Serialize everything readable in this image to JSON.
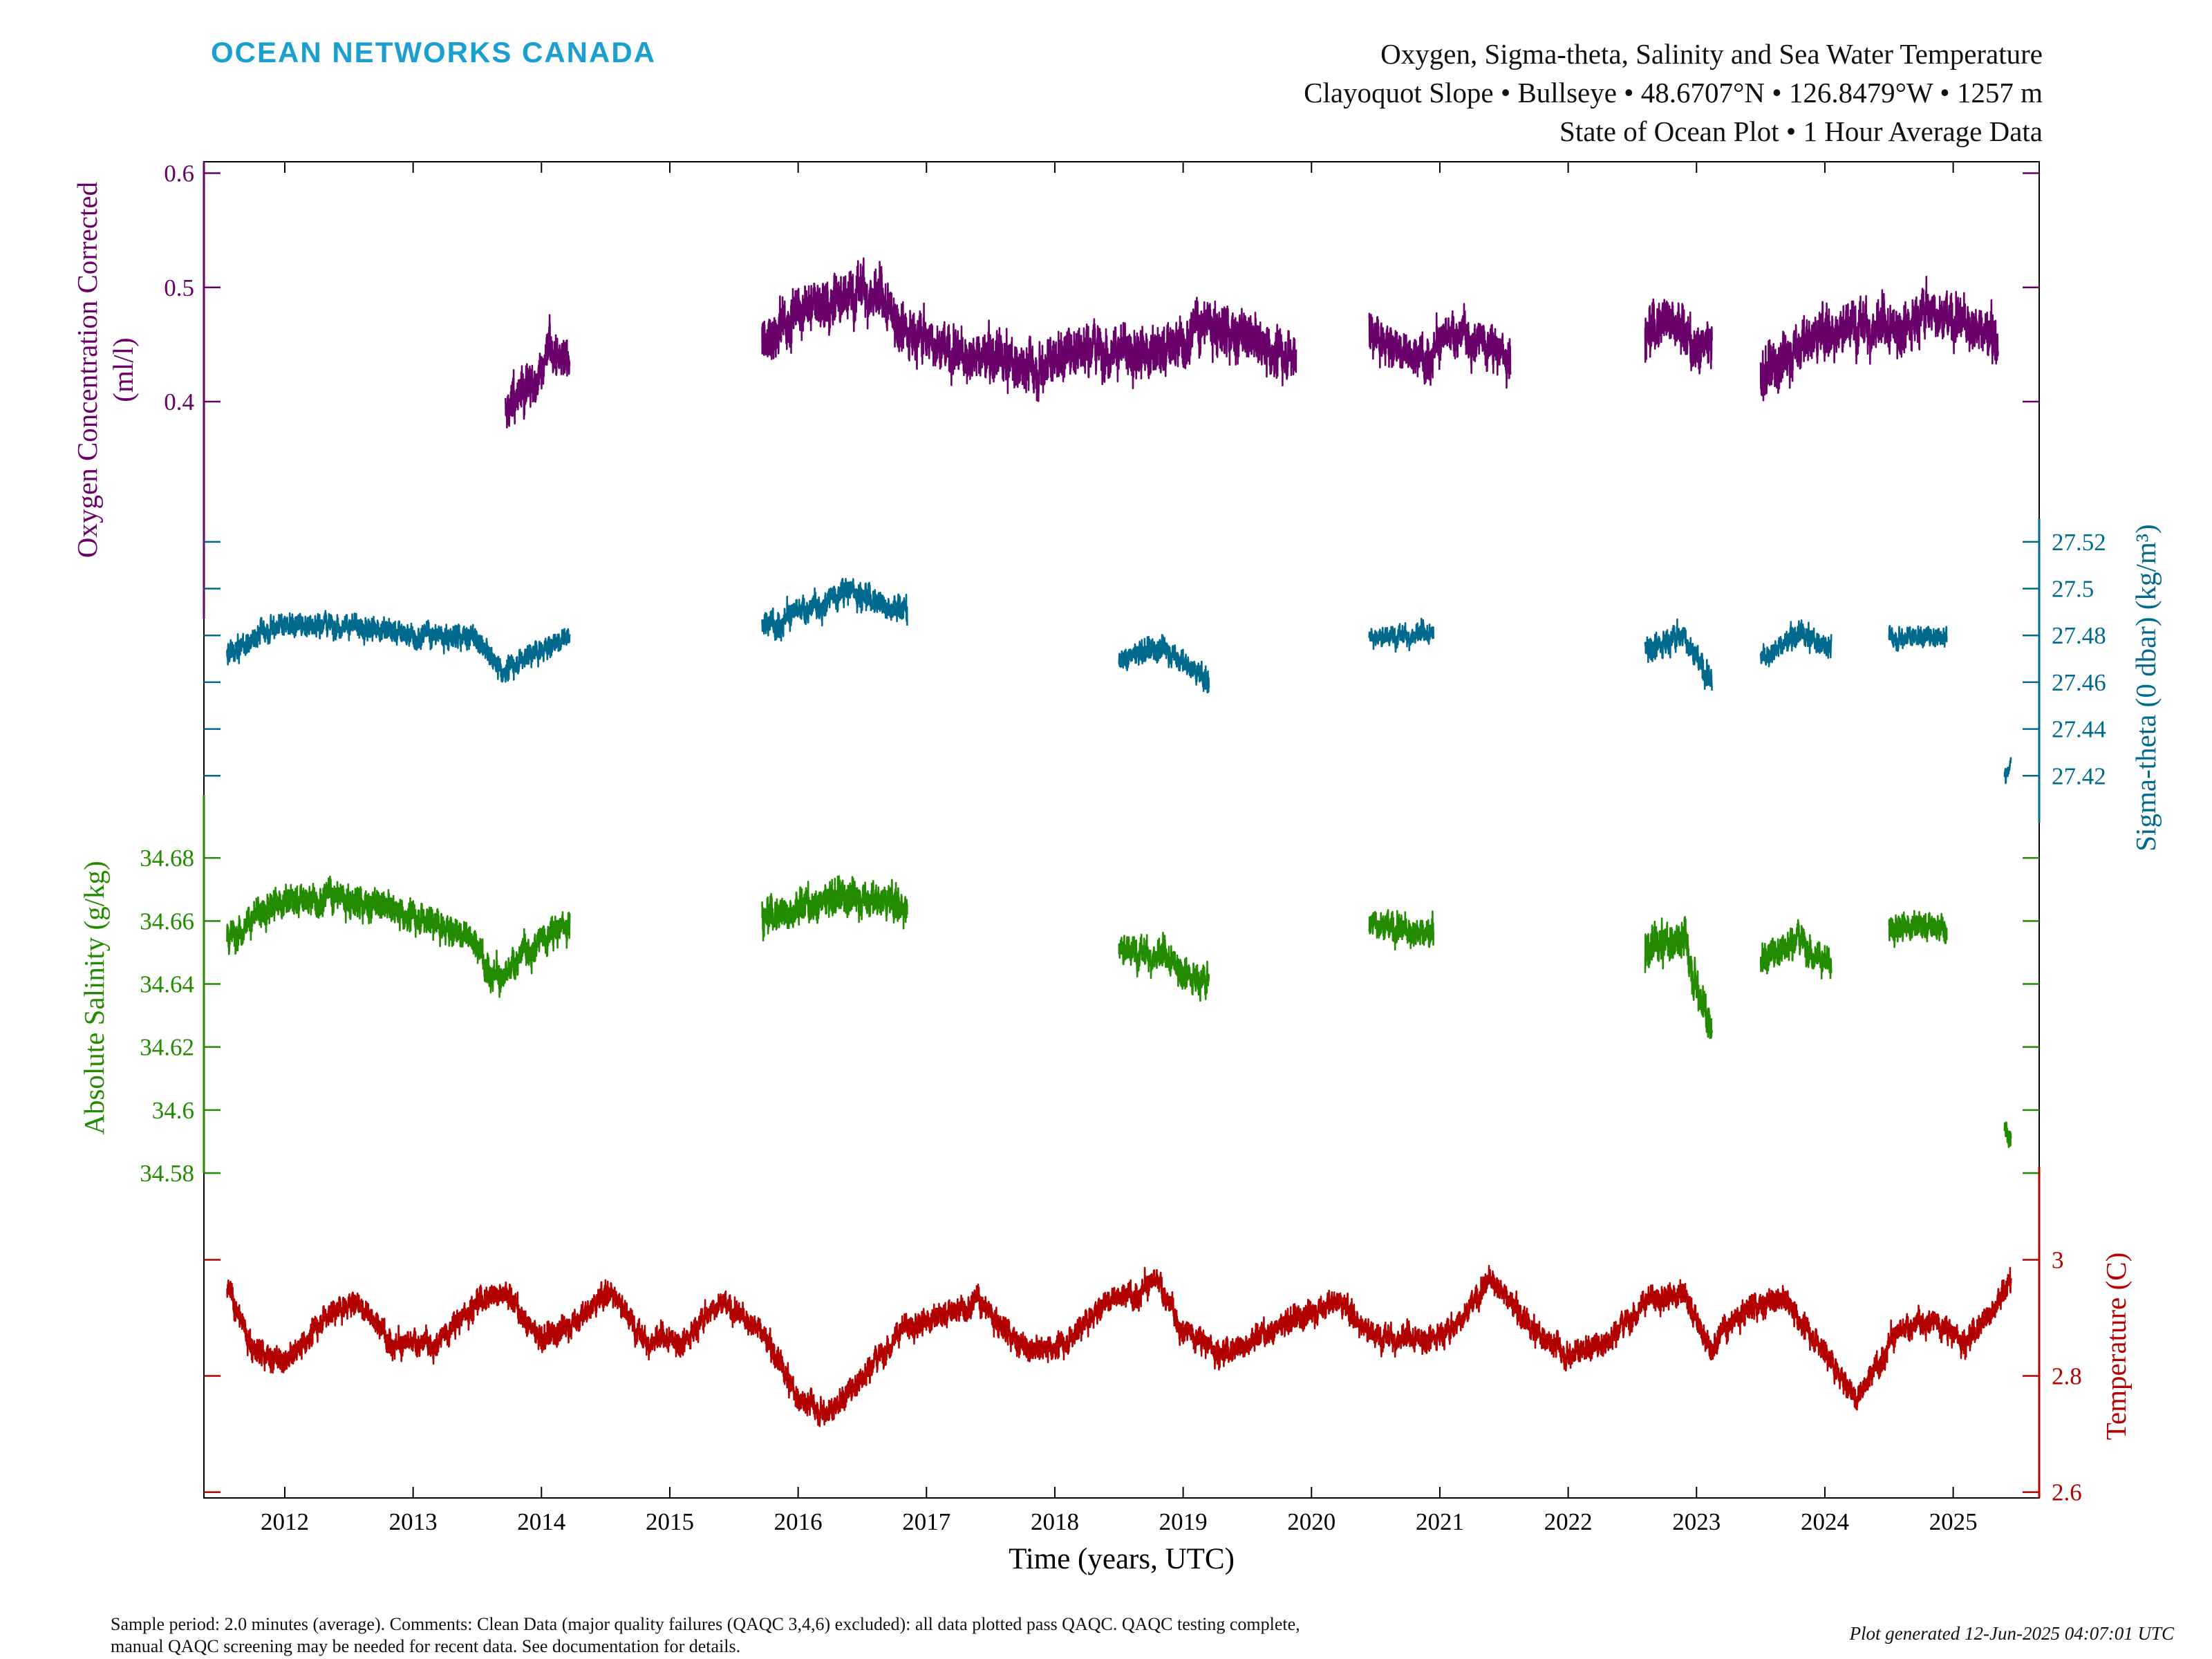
{
  "header": {
    "logo_text": "OCEAN NETWORKS CANADA",
    "title_line1": "Oxygen, Sigma-theta, Salinity and Sea Water Temperature",
    "title_line2": "Clayoquot Slope • Bullseye • 48.6707°N • 126.8479°W • 1257 m",
    "title_line3": "State of Ocean Plot • 1 Hour Average Data"
  },
  "footer": {
    "comment_line1": "Sample period: 2.0 minutes (average). Comments: Clean Data (major quality failures (QAQC 3,4,6) excluded): all data plotted pass QAQC. QAQC testing complete,",
    "comment_line2": "manual QAQC screening may be needed for recent data. See documentation for details.",
    "generated": "Plot generated 12-Jun-2025 04:07:01 UTC"
  },
  "colors": {
    "oxygen": "#6a006a",
    "sigma": "#006a8e",
    "salinity": "#228b00",
    "temperature": "#b30000",
    "logo": "#1a9fd0"
  },
  "chart_data": {
    "type": "line",
    "xlabel": "Time (years, UTC)",
    "x_ticks": [
      "2012",
      "2013",
      "2014",
      "2015",
      "2016",
      "2017",
      "2018",
      "2019",
      "2020",
      "2021",
      "2022",
      "2023",
      "2024",
      "2025"
    ],
    "xlim": [
      2011.37,
      2025.67
    ],
    "grid": false,
    "series": [
      {
        "key": "oxygen",
        "ylabel_line1": "Oxygen Concentration Corrected",
        "ylabel_line2": "(ml/l)",
        "axis_side": "left",
        "ylim": [
          0.21,
          0.61
        ],
        "y_ticks": [
          "0.4",
          "0.5",
          "0.6"
        ],
        "segments": [
          {
            "start": 2013.72,
            "end": 2014.22,
            "points": [
              [
                2013.72,
                0.39
              ],
              [
                2013.85,
                0.41
              ],
              [
                2013.98,
                0.42
              ],
              [
                2014.05,
                0.45
              ],
              [
                2014.1,
                0.44
              ],
              [
                2014.22,
                0.43
              ]
            ],
            "noise": 0.03
          },
          {
            "start": 2015.72,
            "end": 2019.88,
            "points": [
              [
                2015.72,
                0.45
              ],
              [
                2016.0,
                0.48
              ],
              [
                2016.3,
                0.49
              ],
              [
                2016.5,
                0.5
              ],
              [
                2016.9,
                0.46
              ],
              [
                2017.3,
                0.44
              ],
              [
                2017.8,
                0.43
              ],
              [
                2018.2,
                0.45
              ],
              [
                2018.8,
                0.44
              ],
              [
                2019.2,
                0.47
              ],
              [
                2019.6,
                0.45
              ],
              [
                2019.88,
                0.44
              ]
            ],
            "noise": 0.035
          },
          {
            "start": 2020.45,
            "end": 2021.55,
            "points": [
              [
                2020.45,
                0.46
              ],
              [
                2020.8,
                0.44
              ],
              [
                2021.2,
                0.46
              ],
              [
                2021.55,
                0.44
              ]
            ],
            "noise": 0.03
          },
          {
            "start": 2022.6,
            "end": 2023.12,
            "points": [
              [
                2022.6,
                0.46
              ],
              [
                2022.8,
                0.48
              ],
              [
                2022.95,
                0.45
              ],
              [
                2023.12,
                0.45
              ]
            ],
            "noise": 0.035
          },
          {
            "start": 2023.5,
            "end": 2025.35,
            "points": [
              [
                2023.5,
                0.42
              ],
              [
                2023.8,
                0.45
              ],
              [
                2024.2,
                0.47
              ],
              [
                2024.5,
                0.46
              ],
              [
                2024.8,
                0.48
              ],
              [
                2025.1,
                0.47
              ],
              [
                2025.35,
                0.45
              ]
            ],
            "noise": 0.035
          }
        ]
      },
      {
        "key": "sigma",
        "ylabel": "Sigma-theta (0 dbar) (kg/m³)",
        "axis_side": "right",
        "ylim": [
          27.4,
          27.53
        ],
        "y_ticks": [
          "27.42",
          "27.44",
          "27.46",
          "27.48",
          "27.5",
          "27.52"
        ],
        "segments": [
          {
            "start": 2011.55,
            "end": 2014.22,
            "points": [
              [
                2011.55,
                27.47
              ],
              [
                2011.9,
                27.485
              ],
              [
                2012.4,
                27.485
              ],
              [
                2013.0,
                27.48
              ],
              [
                2013.45,
                27.48
              ],
              [
                2013.7,
                27.465
              ],
              [
                2013.85,
                27.47
              ],
              [
                2014.22,
                27.48
              ]
            ],
            "noise": 0.008
          },
          {
            "start": 2015.72,
            "end": 2016.85,
            "points": [
              [
                2015.72,
                27.485
              ],
              [
                2016.05,
                27.49
              ],
              [
                2016.4,
                27.5
              ],
              [
                2016.85,
                27.49
              ]
            ],
            "noise": 0.009
          },
          {
            "start": 2018.5,
            "end": 2019.2,
            "points": [
              [
                2018.5,
                27.47
              ],
              [
                2018.85,
                27.475
              ],
              [
                2019.2,
                27.46
              ]
            ],
            "noise": 0.008
          },
          {
            "start": 2020.45,
            "end": 2020.95,
            "points": [
              [
                2020.45,
                27.48
              ],
              [
                2020.95,
                27.48
              ]
            ],
            "noise": 0.007
          },
          {
            "start": 2022.6,
            "end": 2023.12,
            "points": [
              [
                2022.6,
                27.475
              ],
              [
                2022.9,
                27.48
              ],
              [
                2023.12,
                27.46
              ]
            ],
            "noise": 0.009
          },
          {
            "start": 2023.5,
            "end": 2024.05,
            "points": [
              [
                2023.5,
                27.47
              ],
              [
                2023.8,
                27.48
              ],
              [
                2024.05,
                27.475
              ]
            ],
            "noise": 0.008
          },
          {
            "start": 2024.5,
            "end": 2024.95,
            "points": [
              [
                2024.5,
                27.48
              ],
              [
                2024.95,
                27.48
              ]
            ],
            "noise": 0.007
          },
          {
            "start": 2025.4,
            "end": 2025.45,
            "points": [
              [
                2025.4,
                27.42
              ],
              [
                2025.45,
                27.425
              ]
            ],
            "noise": 0.005
          }
        ]
      },
      {
        "key": "salinity",
        "ylabel": "Absolute Salinity (g/kg)",
        "axis_side": "left",
        "ylim": [
          34.58,
          34.7
        ],
        "y_ticks": [
          "34.58",
          "34.6",
          "34.62",
          "34.64",
          "34.66",
          "34.68"
        ],
        "segments": [
          {
            "start": 2011.55,
            "end": 2014.22,
            "points": [
              [
                2011.55,
                34.655
              ],
              [
                2011.9,
                34.665
              ],
              [
                2012.4,
                34.668
              ],
              [
                2013.0,
                34.662
              ],
              [
                2013.45,
                34.655
              ],
              [
                2013.7,
                34.64
              ],
              [
                2013.85,
                34.65
              ],
              [
                2014.22,
                34.66
              ]
            ],
            "noise": 0.008
          },
          {
            "start": 2015.72,
            "end": 2016.85,
            "points": [
              [
                2015.72,
                34.662
              ],
              [
                2016.05,
                34.665
              ],
              [
                2016.4,
                34.668
              ],
              [
                2016.85,
                34.665
              ]
            ],
            "noise": 0.009
          },
          {
            "start": 2018.5,
            "end": 2019.2,
            "points": [
              [
                2018.5,
                34.652
              ],
              [
                2018.85,
                34.648
              ],
              [
                2019.2,
                34.64
              ]
            ],
            "noise": 0.008
          },
          {
            "start": 2020.45,
            "end": 2020.95,
            "points": [
              [
                2020.45,
                34.66
              ],
              [
                2020.95,
                34.655
              ]
            ],
            "noise": 0.008
          },
          {
            "start": 2022.6,
            "end": 2023.12,
            "points": [
              [
                2022.6,
                34.65
              ],
              [
                2022.9,
                34.655
              ],
              [
                2023.12,
                34.625
              ]
            ],
            "noise": 0.01
          },
          {
            "start": 2023.5,
            "end": 2024.05,
            "points": [
              [
                2023.5,
                34.648
              ],
              [
                2023.8,
                34.655
              ],
              [
                2024.05,
                34.645
              ]
            ],
            "noise": 0.008
          },
          {
            "start": 2024.5,
            "end": 2024.95,
            "points": [
              [
                2024.5,
                34.658
              ],
              [
                2024.95,
                34.658
              ]
            ],
            "noise": 0.007
          },
          {
            "start": 2025.4,
            "end": 2025.45,
            "points": [
              [
                2025.4,
                34.595
              ],
              [
                2025.45,
                34.59
              ]
            ],
            "noise": 0.005
          }
        ]
      },
      {
        "key": "temperature",
        "ylabel": "Temperature (C)",
        "axis_side": "right",
        "ylim": [
          2.59,
          3.16
        ],
        "y_ticks": [
          "2.6",
          "2.8",
          "3"
        ],
        "segments": [
          {
            "start": 2011.55,
            "end": 2025.45,
            "points": [
              [
                2011.55,
                2.95
              ],
              [
                2011.75,
                2.85
              ],
              [
                2012.0,
                2.82
              ],
              [
                2012.3,
                2.9
              ],
              [
                2012.55,
                2.93
              ],
              [
                2012.9,
                2.85
              ],
              [
                2013.2,
                2.86
              ],
              [
                2013.5,
                2.93
              ],
              [
                2013.7,
                2.95
              ],
              [
                2014.0,
                2.86
              ],
              [
                2014.3,
                2.9
              ],
              [
                2014.55,
                2.95
              ],
              [
                2014.8,
                2.86
              ],
              [
                2015.1,
                2.86
              ],
              [
                2015.4,
                2.93
              ],
              [
                2015.7,
                2.88
              ],
              [
                2016.0,
                2.76
              ],
              [
                2016.25,
                2.74
              ],
              [
                2016.5,
                2.8
              ],
              [
                2016.8,
                2.88
              ],
              [
                2017.1,
                2.9
              ],
              [
                2017.4,
                2.93
              ],
              [
                2017.8,
                2.84
              ],
              [
                2018.1,
                2.86
              ],
              [
                2018.4,
                2.93
              ],
              [
                2018.8,
                2.96
              ],
              [
                2019.0,
                2.88
              ],
              [
                2019.3,
                2.84
              ],
              [
                2019.6,
                2.87
              ],
              [
                2019.9,
                2.9
              ],
              [
                2020.2,
                2.93
              ],
              [
                2020.5,
                2.87
              ],
              [
                2020.8,
                2.86
              ],
              [
                2021.1,
                2.88
              ],
              [
                2021.4,
                2.97
              ],
              [
                2021.7,
                2.88
              ],
              [
                2022.0,
                2.84
              ],
              [
                2022.3,
                2.86
              ],
              [
                2022.6,
                2.93
              ],
              [
                2022.9,
                2.94
              ],
              [
                2023.1,
                2.85
              ],
              [
                2023.4,
                2.92
              ],
              [
                2023.7,
                2.93
              ],
              [
                2024.0,
                2.84
              ],
              [
                2024.25,
                2.76
              ],
              [
                2024.5,
                2.86
              ],
              [
                2024.8,
                2.9
              ],
              [
                2025.1,
                2.86
              ],
              [
                2025.45,
                2.96
              ]
            ],
            "noise": 0.035
          }
        ]
      }
    ]
  }
}
